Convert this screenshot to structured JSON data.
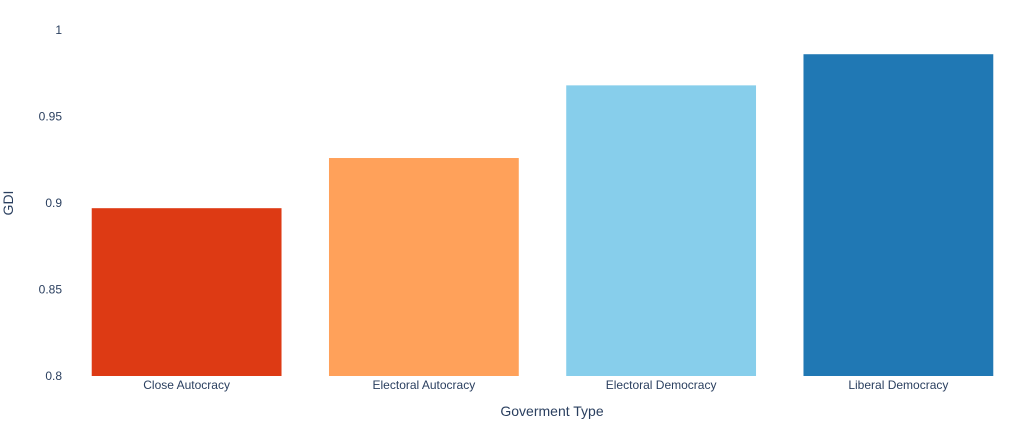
{
  "chart_data": {
    "type": "bar",
    "title": "",
    "xlabel": "Goverment Type",
    "ylabel": "GDI",
    "categories": [
      "Close Autocracy",
      "Electoral Autocracy",
      "Electoral Democracy",
      "Liberal Democracy"
    ],
    "values": [
      0.897,
      0.926,
      0.968,
      0.986
    ],
    "colors": [
      "#dd3a14",
      "#ffa15a",
      "#87ceeb",
      "#2078b4"
    ],
    "ylim": [
      0.8,
      1.0
    ],
    "yticks": [
      0.8,
      0.85,
      0.9,
      0.95,
      1
    ],
    "ytick_labels": [
      "0.8",
      "0.85",
      "0.9",
      "0.95",
      "1"
    ],
    "grid": false,
    "legend": false
  }
}
